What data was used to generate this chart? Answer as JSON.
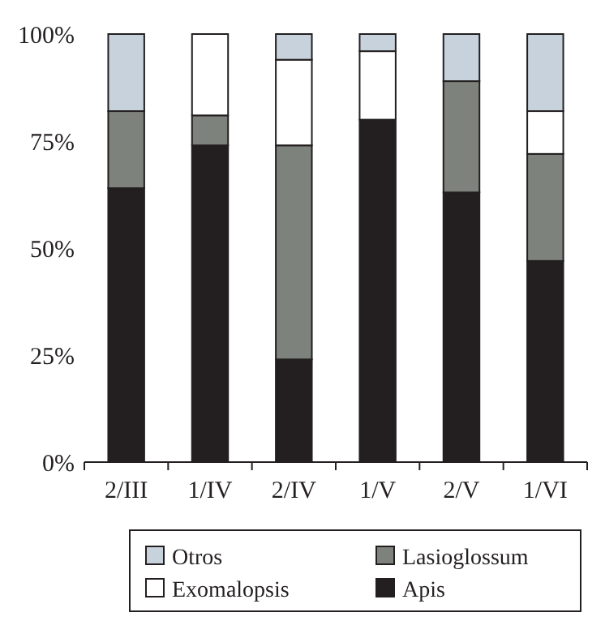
{
  "chart_data": {
    "type": "bar",
    "stacked": true,
    "categories": [
      "2/III",
      "1/IV",
      "2/IV",
      "1/V",
      "2/V",
      "1/VI"
    ],
    "series": [
      {
        "name": "Apis",
        "color": "#231f20",
        "values": [
          64,
          74,
          24,
          80,
          63,
          47
        ]
      },
      {
        "name": "Lasioglossum",
        "color": "#7e827c",
        "values": [
          18,
          7,
          50,
          0,
          26,
          25
        ]
      },
      {
        "name": "Exomalopsis",
        "color": "#ffffff",
        "values": [
          0,
          19,
          20,
          16,
          0,
          10
        ]
      },
      {
        "name": "Otros",
        "color": "#c8d2dc",
        "values": [
          18,
          0,
          6,
          4,
          11,
          18
        ]
      }
    ],
    "ylim": [
      0,
      100
    ],
    "yticks": [
      {
        "value": 0,
        "label": "0%"
      },
      {
        "value": 25,
        "label": "25%"
      },
      {
        "value": 50,
        "label": "50%"
      },
      {
        "value": 75,
        "label": "75%"
      },
      {
        "value": 100,
        "label": "100%"
      }
    ],
    "legend": "bottom"
  }
}
